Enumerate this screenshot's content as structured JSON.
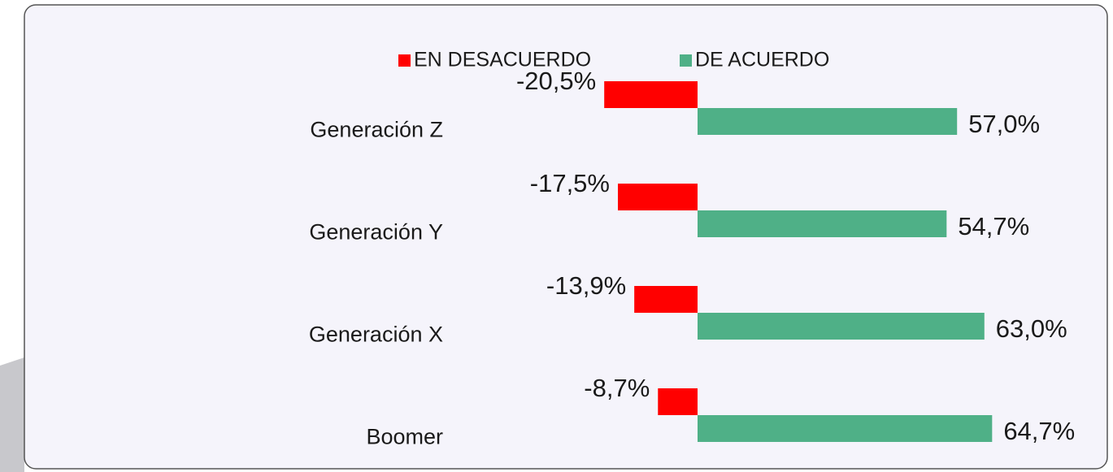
{
  "chart_data": {
    "type": "bar",
    "orientation": "horizontal",
    "categories": [
      "Generación Z",
      "Generación Y",
      "Generación X",
      "Boomer"
    ],
    "series": [
      {
        "name": "EN DESACUERDO",
        "color": "#ff0000",
        "values": [
          -20.5,
          -17.5,
          -13.9,
          -8.7
        ],
        "value_labels": [
          "-20,5%",
          "-17,5%",
          "-13,9%",
          "-8,7%"
        ]
      },
      {
        "name": "DE ACUERDO",
        "color": "#4fb087",
        "values": [
          57.0,
          54.7,
          63.0,
          64.7
        ],
        "value_labels": [
          "57,0%",
          "54,7%",
          "63,0%",
          "64,7%"
        ]
      }
    ],
    "legend": "top"
  }
}
